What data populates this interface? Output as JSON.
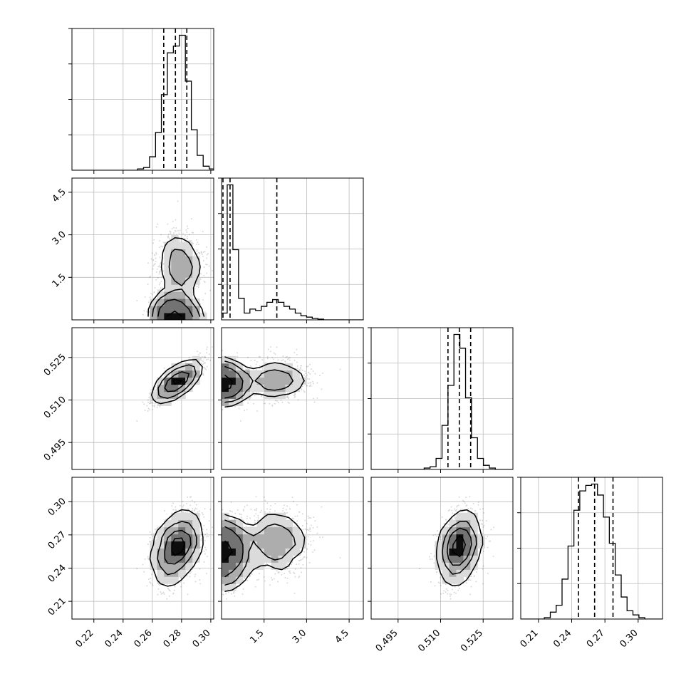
{
  "chart_data": {
    "type": "corner",
    "title": "",
    "params": [
      {
        "name": "",
        "range": [
          0.205,
          0.302
        ],
        "ticks": [
          "0.22",
          "0.24",
          "0.26",
          "0.28",
          "0.30"
        ],
        "quantiles": [
          0.2678,
          0.2758,
          0.2836
        ],
        "hist": {
          "edges": [
            0.205,
            0.2091,
            0.2132,
            0.2173,
            0.2213,
            0.2254,
            0.2295,
            0.2336,
            0.2377,
            0.2418,
            0.2458,
            0.2499,
            0.254,
            0.2581,
            0.2622,
            0.2662,
            0.2703,
            0.2744,
            0.2785,
            0.2826,
            0.2867,
            0.2907,
            0.2948,
            0.2989,
            0.302
          ],
          "counts": [
            0,
            0,
            0,
            0,
            0,
            0,
            0,
            0,
            0,
            0,
            0,
            0.01,
            0.02,
            0.1,
            0.28,
            0.56,
            0.87,
            0.92,
            1.0,
            0.66,
            0.3,
            0.11,
            0.03,
            0.01
          ]
        }
      },
      {
        "name": "",
        "range": [
          0.0,
          5.0
        ],
        "ticks": [
          "1.5",
          "3.0",
          "4.5"
        ],
        "quantiles": [
          0.05,
          0.3,
          1.95
        ],
        "hist": {
          "edges": [
            0.0,
            0.2,
            0.4,
            0.6,
            0.8,
            1.0,
            1.2,
            1.4,
            1.6,
            1.8,
            2.0,
            2.2,
            2.4,
            2.6,
            2.8,
            3.0,
            3.2,
            3.4,
            3.6,
            3.8,
            4.0,
            4.2,
            4.4,
            4.6,
            4.8,
            5.0
          ],
          "counts": [
            0.05,
            1.0,
            0.52,
            0.16,
            0.05,
            0.08,
            0.07,
            0.1,
            0.13,
            0.15,
            0.13,
            0.1,
            0.08,
            0.05,
            0.03,
            0.02,
            0.01,
            0.005,
            0,
            0,
            0,
            0,
            0,
            0,
            0
          ]
        }
      },
      {
        "name": "",
        "range": [
          0.4855,
          0.5355
        ],
        "ticks": [
          "0.495",
          "0.510",
          "0.525"
        ],
        "quantiles": [
          0.5126,
          0.5166,
          0.5206
        ],
        "hist": {
          "edges": [
            0.4855,
            0.4876,
            0.4897,
            0.4917,
            0.4938,
            0.4959,
            0.498,
            0.5001,
            0.5022,
            0.5042,
            0.5063,
            0.5084,
            0.5105,
            0.5126,
            0.5147,
            0.5168,
            0.5188,
            0.5209,
            0.523,
            0.5251,
            0.5272,
            0.5293,
            0.5313,
            0.5334,
            0.5355
          ],
          "counts": [
            0,
            0,
            0,
            0,
            0,
            0,
            0,
            0,
            0,
            0.01,
            0.02,
            0.08,
            0.32,
            0.61,
            0.98,
            0.88,
            0.52,
            0.23,
            0.08,
            0.03,
            0.01,
            0,
            0,
            0
          ]
        }
      },
      {
        "name": "",
        "range": [
          0.194,
          0.322
        ],
        "ticks": [
          "0.21",
          "0.24",
          "0.27",
          "0.30"
        ],
        "quantiles": [
          0.2461,
          0.2607,
          0.2773
        ],
        "hist": {
          "edges": [
            0.194,
            0.1993,
            0.2047,
            0.21,
            0.2153,
            0.2207,
            0.226,
            0.2313,
            0.2367,
            0.242,
            0.2473,
            0.2527,
            0.258,
            0.2633,
            0.2687,
            0.274,
            0.2793,
            0.2847,
            0.29,
            0.2953,
            0.3007,
            0.306,
            0.3113,
            0.3167,
            0.322
          ],
          "counts": [
            0,
            0,
            0,
            0,
            0.01,
            0.05,
            0.1,
            0.29,
            0.53,
            0.79,
            0.93,
            0.97,
            0.98,
            0.9,
            0.74,
            0.55,
            0.32,
            0.16,
            0.06,
            0.03,
            0.01,
            0,
            0,
            0
          ]
        }
      }
    ],
    "correlations": {
      "0,2": 0.8,
      "0,3": 0.3,
      "2,3": 0.25,
      "1,0": 0.2,
      "1,2": 0.15,
      "1,3": 0.25
    },
    "modes": {
      "1": [
        {
          "weight": 0.55,
          "mean": 0.3,
          "sd": 0.3
        },
        {
          "weight": 0.45,
          "mean": 1.9,
          "sd": 0.6
        }
      ]
    },
    "grid": true,
    "levels": [
      "0.5-sigma",
      "1.0-sigma",
      "1.5-sigma",
      "2.0-sigma"
    ]
  }
}
